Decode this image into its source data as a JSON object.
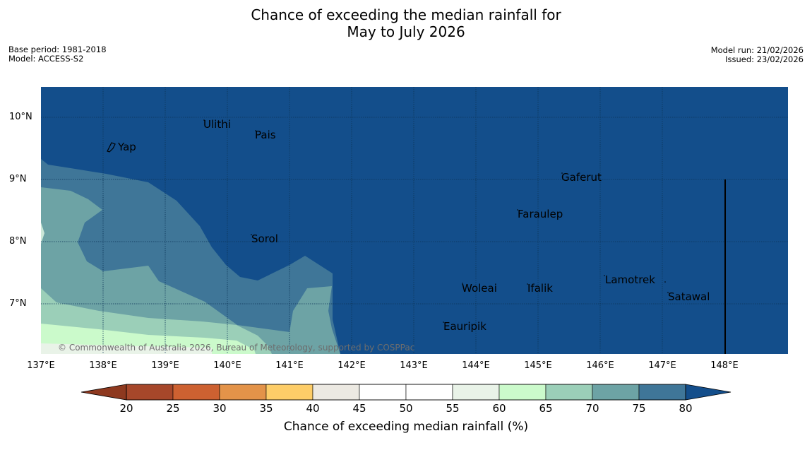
{
  "title": {
    "line1": "Chance of exceeding the median rainfall for",
    "line2": "May to July 2026"
  },
  "meta_left": {
    "base_period": "Base period: 1981-2018",
    "model": "Model: ACCESS-S2"
  },
  "meta_right": {
    "model_run": "Model run: 21/02/2026",
    "issued": "Issued: 23/02/2026"
  },
  "map": {
    "lon_labels": [
      "137°E",
      "138°E",
      "139°E",
      "140°E",
      "141°E",
      "142°E",
      "143°E",
      "144°E",
      "145°E",
      "146°E",
      "147°E",
      "148°E"
    ],
    "lat_labels": [
      "10°N",
      "9°N",
      "8°N",
      "7°N"
    ],
    "places": [
      {
        "name": "Ulithi"
      },
      {
        "name": "Pais"
      },
      {
        "name": "Yap"
      },
      {
        "name": "Gaferut"
      },
      {
        "name": "Faraulep"
      },
      {
        "name": "Sorol"
      },
      {
        "name": "Lamotrek"
      },
      {
        "name": "Woleai"
      },
      {
        "name": "Ifalik"
      },
      {
        "name": "Satawal"
      },
      {
        "name": "Eauripik"
      }
    ],
    "copyright": "© Commonwealth of Australia 2026, Bureau of Meteorology, supported by COSPPac"
  },
  "colorbar": {
    "ticks": [
      "20",
      "25",
      "30",
      "35",
      "40",
      "45",
      "50",
      "55",
      "60",
      "65",
      "70",
      "75",
      "80"
    ],
    "colors": [
      "#a6472a",
      "#cd6131",
      "#e39349",
      "#fdcd68",
      "#ece9e2",
      "#ffffff",
      "#ffffff",
      "#e9f3e8",
      "#cbfacb",
      "#9bcfb8",
      "#6da3a5",
      "#3f7698"
    ],
    "below_color": "#8e391f",
    "above_color": "#134e8b",
    "label": "Chance of exceeding median rainfall (%)"
  }
}
